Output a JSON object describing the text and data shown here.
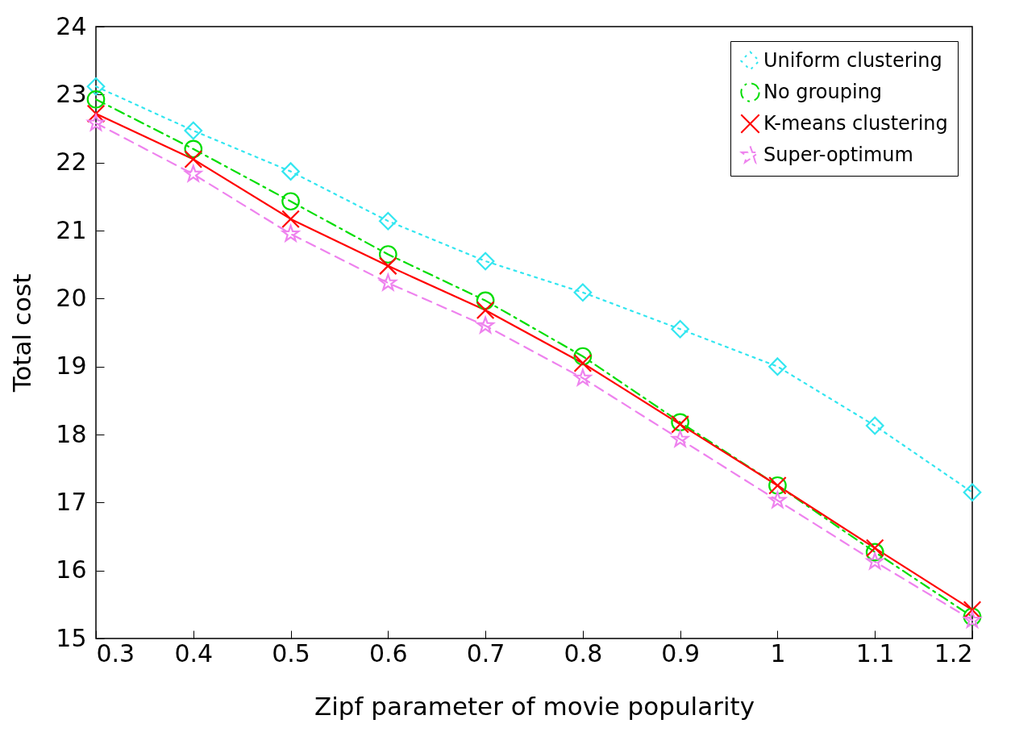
{
  "chart_data": {
    "type": "line",
    "xlabel": "Zipf parameter of movie popularity",
    "ylabel": "Total cost",
    "x": [
      0.3,
      0.4,
      0.5,
      0.6,
      0.7,
      0.8,
      0.9,
      1,
      1.1,
      1.2
    ],
    "xlim": [
      0.3,
      1.2
    ],
    "xticks": [
      0.3,
      0.4,
      0.5,
      0.6,
      0.7,
      0.8,
      0.9,
      1,
      1.1,
      1.2
    ],
    "ylim": [
      15,
      24
    ],
    "yticks": [
      15,
      16,
      17,
      18,
      19,
      20,
      21,
      22,
      23,
      24
    ],
    "grid": false,
    "legend": "top right",
    "series": [
      {
        "name": "Uniform clustering",
        "color": "#33e6f0",
        "marker": "diamond",
        "line_style": "dotted",
        "values": [
          23.12,
          22.47,
          21.87,
          21.14,
          20.55,
          20.09,
          19.55,
          19.0,
          18.13,
          17.15
        ]
      },
      {
        "name": "No grouping",
        "color": "#00dd00",
        "marker": "circle",
        "line_style": "dashdot",
        "values": [
          22.93,
          22.2,
          21.43,
          20.65,
          19.97,
          19.15,
          18.18,
          17.25,
          16.27,
          15.32
        ]
      },
      {
        "name": "K-means clustering",
        "color": "#ff0000",
        "marker": "cross",
        "line_style": "solid",
        "values": [
          22.72,
          22.05,
          21.17,
          20.48,
          19.83,
          19.05,
          18.15,
          17.25,
          16.33,
          15.42
        ]
      },
      {
        "name": "Super-optimum",
        "color": "#ee82ee",
        "marker": "star",
        "line_style": "dashed",
        "values": [
          22.58,
          21.83,
          20.95,
          20.23,
          19.6,
          18.83,
          17.93,
          17.03,
          16.13,
          15.27
        ]
      }
    ]
  }
}
